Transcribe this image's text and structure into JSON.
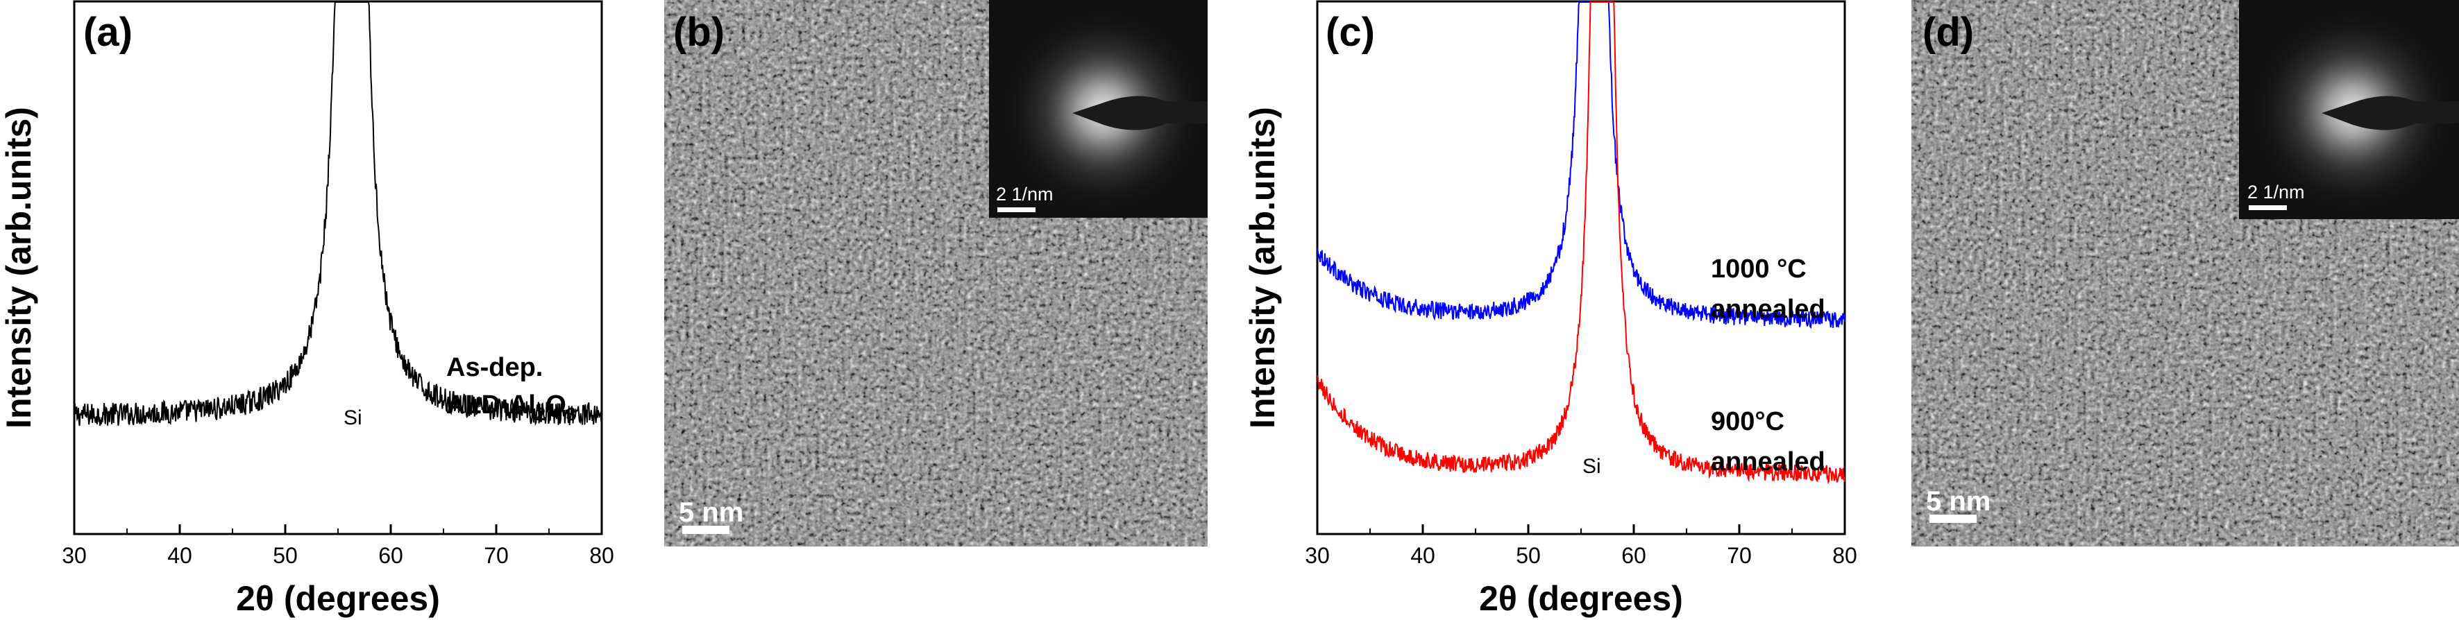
{
  "panels": {
    "a": {
      "label": "(a)",
      "ylabel": "Intensity (arb.units)",
      "annotation_line1": "As-dep.",
      "annotation_line2_prefix": "ALD-Al",
      "annotation_sub1": "2",
      "annotation_mid": "O",
      "annotation_sub2": "3",
      "peak_label": "Si"
    },
    "b": {
      "label": "(b)",
      "scalebar": "5 nm",
      "inset_scalebar": "2 1/nm"
    },
    "c": {
      "label": "(c)",
      "ylabel": "Intensity (arb.units)",
      "temp1": "1000 °C",
      "temp1_note": "annealed",
      "temp2": "900°C",
      "temp2_note": "annealed",
      "peak_label": "Si"
    },
    "d": {
      "label": "(d)",
      "scalebar": "5 nm",
      "inset_scalebar": "2 1/nm"
    }
  },
  "chart_data": [
    {
      "type": "line",
      "panel": "a",
      "title": "(a)",
      "xlabel": "2θ (degrees)",
      "ylabel": "Intensity (arb.units)",
      "xlim": [
        30,
        80
      ],
      "ylim": [
        0,
        100
      ],
      "xticks": [
        30,
        40,
        50,
        60,
        70,
        80
      ],
      "series": [
        {
          "name": "As-dep. ALD-Al2O3",
          "color": "#000000",
          "baseline": 22,
          "noise": 2.2,
          "peak_center": 56.3,
          "peak_halfwidth": 0.8,
          "peak_height": 400
        }
      ],
      "annotations": [
        "As-dep.",
        "ALD-Al2O3",
        "Si"
      ]
    },
    {
      "type": "line",
      "panel": "c",
      "title": "(c)",
      "xlabel": "2θ (degrees)",
      "ylabel": "Intensity (arb.units)",
      "xlim": [
        30,
        80
      ],
      "ylim": [
        0,
        100
      ],
      "xticks": [
        30,
        40,
        50,
        60,
        70,
        80
      ],
      "series": [
        {
          "name": "1000 °C annealed",
          "color": "#0000ff",
          "baseline": 40,
          "start_excess": 13,
          "noise": 1.6,
          "peak_center": 56.2,
          "peak_halfwidth": 0.6,
          "peak_height": 400
        },
        {
          "name": "900°C annealed",
          "color": "#ff0000",
          "baseline": 11,
          "start_excess": 18,
          "noise": 1.6,
          "peak_center": 57.0,
          "peak_halfwidth": 0.6,
          "peak_height": 400
        }
      ],
      "annotations": [
        "1000 °C annealed",
        "900°C annealed",
        "Si"
      ]
    }
  ]
}
